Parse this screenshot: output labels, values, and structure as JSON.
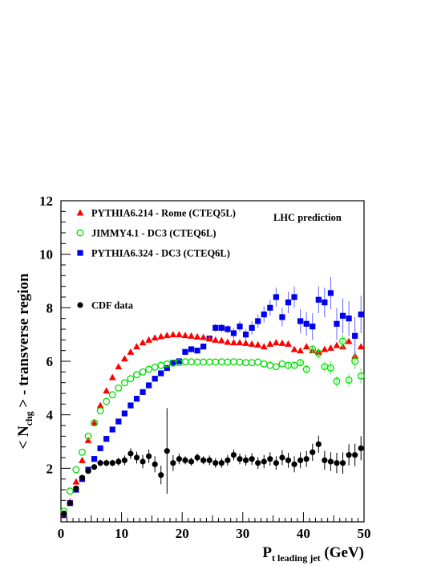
{
  "chart_data": {
    "type": "scatter",
    "annotation": "LHC prediction",
    "xlabel": {
      "main": "P",
      "sub": "t leading jet",
      "unit": " (GeV)"
    },
    "ylabel": {
      "pre": "< N",
      "sub": "chg",
      "post": " > - transverse region"
    },
    "xlim": [
      0,
      50
    ],
    "ylim": [
      0,
      12
    ],
    "xticks": [
      0,
      10,
      20,
      30,
      40,
      50
    ],
    "yticks": [
      2,
      4,
      6,
      8,
      10,
      12
    ],
    "legend_placement": "top-left",
    "series": [
      {
        "name": "PYTHIA6.214 - Rome (CTEQ5L)",
        "marker": "triangle",
        "color": "#ff0000",
        "x": [
          0.5,
          1.5,
          2.5,
          3.5,
          4.5,
          5.5,
          6.5,
          7.5,
          8.5,
          9.5,
          10.5,
          11.5,
          12.5,
          13.5,
          14.5,
          15.5,
          16.5,
          17.5,
          18.5,
          19.5,
          20.5,
          21.5,
          22.5,
          23.5,
          24.5,
          25.5,
          26.5,
          27.5,
          28.5,
          29.5,
          30.5,
          31.5,
          32.5,
          33.5,
          34.5,
          35.5,
          36.5,
          37.5,
          38.5,
          39.5,
          40.5,
          41.5,
          42.5,
          43.5,
          44.5,
          45.5,
          46.5,
          47.5,
          48.5,
          49.5
        ],
        "y": [
          0.3,
          0.75,
          1.5,
          2.3,
          3.05,
          3.7,
          4.35,
          4.9,
          5.4,
          5.8,
          6.1,
          6.35,
          6.55,
          6.7,
          6.8,
          6.88,
          6.93,
          6.97,
          7.0,
          7.0,
          6.97,
          6.95,
          6.92,
          6.9,
          6.85,
          6.8,
          6.78,
          6.72,
          6.7,
          6.7,
          6.68,
          6.65,
          6.62,
          6.55,
          6.65,
          6.7,
          6.68,
          6.65,
          6.45,
          6.4,
          6.55,
          6.4,
          6.35,
          6.45,
          6.5,
          6.6,
          6.55,
          6.75,
          6.2,
          6.55
        ],
        "yerr": [
          0,
          0,
          0,
          0,
          0,
          0,
          0,
          0,
          0,
          0,
          0,
          0,
          0,
          0,
          0,
          0,
          0,
          0,
          0,
          0,
          0,
          0,
          0,
          0,
          0,
          0,
          0,
          0,
          0,
          0,
          0,
          0,
          0,
          0,
          0,
          0,
          0,
          0,
          0,
          0,
          0,
          0,
          0.15,
          0,
          0,
          0,
          0,
          0,
          0,
          0
        ]
      },
      {
        "name": "JIMMY4.1 - DC3 (CTEQ6L)",
        "marker": "open-circle",
        "color": "#00dd00",
        "x": [
          0.5,
          1.5,
          2.5,
          3.5,
          4.5,
          5.5,
          6.5,
          7.5,
          8.5,
          9.5,
          10.5,
          11.5,
          12.5,
          13.5,
          14.5,
          15.5,
          16.5,
          17.5,
          18.5,
          19.5,
          20.5,
          21.5,
          22.5,
          23.5,
          24.5,
          25.5,
          26.5,
          27.5,
          28.5,
          29.5,
          30.5,
          31.5,
          32.5,
          33.5,
          34.5,
          35.5,
          36.5,
          37.5,
          38.5,
          39.5,
          40.5,
          41.5,
          42.5,
          43.5,
          44.5,
          45.5,
          46.5,
          47.5,
          48.5,
          49.5
        ],
        "y": [
          0.4,
          1.15,
          1.95,
          2.6,
          3.2,
          3.7,
          4.15,
          4.5,
          4.75,
          5.0,
          5.2,
          5.35,
          5.5,
          5.6,
          5.7,
          5.78,
          5.85,
          5.9,
          5.93,
          5.95,
          5.98,
          5.98,
          5.97,
          5.97,
          5.97,
          5.97,
          5.98,
          5.97,
          5.98,
          5.97,
          5.95,
          5.95,
          5.97,
          5.9,
          5.85,
          5.8,
          5.9,
          5.85,
          5.85,
          5.95,
          5.7,
          6.45,
          6.3,
          5.8,
          5.75,
          5.25,
          6.75,
          5.3,
          6.0,
          5.45
        ],
        "yerr": [
          0,
          0,
          0,
          0,
          0,
          0,
          0,
          0,
          0,
          0,
          0,
          0,
          0,
          0,
          0,
          0,
          0,
          0,
          0,
          0,
          0,
          0,
          0,
          0,
          0,
          0,
          0,
          0,
          0,
          0,
          0,
          0,
          0,
          0,
          0,
          0,
          0,
          0.1,
          0.1,
          0.15,
          0.15,
          0.15,
          0.2,
          0.2,
          0.25,
          0.2,
          0.25,
          0.25,
          0.3,
          0.3
        ]
      },
      {
        "name": "PYTHIA6.324 - DC3 (CTEQ6L)",
        "marker": "square",
        "color": "#0000ee",
        "x": [
          0.5,
          1.5,
          2.5,
          3.5,
          4.5,
          5.5,
          6.5,
          7.5,
          8.5,
          9.5,
          10.5,
          11.5,
          12.5,
          13.5,
          14.5,
          15.5,
          16.5,
          17.5,
          18.5,
          19.5,
          20.5,
          21.5,
          22.5,
          23.5,
          24.5,
          25.5,
          26.5,
          27.5,
          28.5,
          29.5,
          30.5,
          31.5,
          32.5,
          33.5,
          34.5,
          35.5,
          36.5,
          37.5,
          38.5,
          39.5,
          40.5,
          41.5,
          42.5,
          43.5,
          44.5,
          45.5,
          46.5,
          47.5,
          48.5,
          49.5
        ],
        "y": [
          0.25,
          0.7,
          1.2,
          1.6,
          1.95,
          2.35,
          2.75,
          3.1,
          3.45,
          3.75,
          4.05,
          4.35,
          4.6,
          4.85,
          5.1,
          5.35,
          5.55,
          5.75,
          5.95,
          6.0,
          6.35,
          6.45,
          6.4,
          6.55,
          6.85,
          7.25,
          7.25,
          7.2,
          7.05,
          7.3,
          7.0,
          7.25,
          7.5,
          7.75,
          8.0,
          8.4,
          7.65,
          8.2,
          8.4,
          7.5,
          7.4,
          7.3,
          8.3,
          8.2,
          8.55,
          7.4,
          7.7,
          7.6,
          6.95,
          7.75
        ],
        "yerr": [
          0,
          0,
          0,
          0,
          0,
          0,
          0,
          0,
          0,
          0,
          0,
          0,
          0,
          0,
          0,
          0,
          0,
          0,
          0,
          0,
          0,
          0,
          0,
          0,
          0,
          0.15,
          0.15,
          0.15,
          0.2,
          0.2,
          0.2,
          0.25,
          0.25,
          0.3,
          0.3,
          0.35,
          0.35,
          0.4,
          0.4,
          0.45,
          0.45,
          0.5,
          0.5,
          0.55,
          0.6,
          0.6,
          0.65,
          0.65,
          0.7,
          0.7
        ]
      },
      {
        "name": "CDF data",
        "marker": "filled-circle",
        "color": "#000000",
        "x": [
          0.5,
          1.5,
          2.5,
          3.5,
          4.5,
          5.5,
          6.5,
          7.5,
          8.5,
          9.5,
          10.5,
          11.5,
          12.5,
          13.5,
          14.5,
          15.5,
          16.5,
          17.5,
          18.5,
          19.5,
          20.5,
          21.5,
          22.5,
          23.5,
          24.5,
          25.5,
          26.5,
          27.5,
          28.5,
          29.5,
          30.5,
          31.5,
          32.5,
          33.5,
          34.5,
          35.5,
          36.5,
          37.5,
          38.5,
          39.5,
          40.5,
          41.5,
          42.5,
          43.5,
          44.5,
          45.5,
          46.5,
          47.5,
          48.5,
          49.5
        ],
        "y": [
          0.3,
          0.7,
          1.25,
          1.65,
          1.9,
          2.05,
          2.2,
          2.2,
          2.2,
          2.25,
          2.3,
          2.55,
          2.4,
          2.25,
          2.45,
          2.15,
          1.75,
          2.65,
          2.2,
          2.35,
          2.3,
          2.25,
          2.4,
          2.3,
          2.3,
          2.2,
          2.2,
          2.3,
          2.5,
          2.35,
          2.3,
          2.35,
          2.2,
          2.25,
          2.35,
          2.2,
          2.4,
          2.3,
          2.15,
          2.3,
          2.35,
          2.6,
          2.9,
          2.3,
          2.25,
          2.2,
          2.2,
          2.5,
          2.5,
          2.75
        ],
        "yerr": [
          0.05,
          0.05,
          0.08,
          0.08,
          0.1,
          0.1,
          0.12,
          0.12,
          0.12,
          0.15,
          0.18,
          0.2,
          0.22,
          0.25,
          0.25,
          0.3,
          0.35,
          1.6,
          0.3,
          0.2,
          0.15,
          0.15,
          0.15,
          0.15,
          0.18,
          0.18,
          0.18,
          0.2,
          0.2,
          0.2,
          0.2,
          0.22,
          0.22,
          0.25,
          0.25,
          0.25,
          0.28,
          0.28,
          0.3,
          0.3,
          0.3,
          0.32,
          0.32,
          0.35,
          0.35,
          0.38,
          0.4,
          0.4,
          0.42,
          0.45
        ]
      }
    ]
  }
}
